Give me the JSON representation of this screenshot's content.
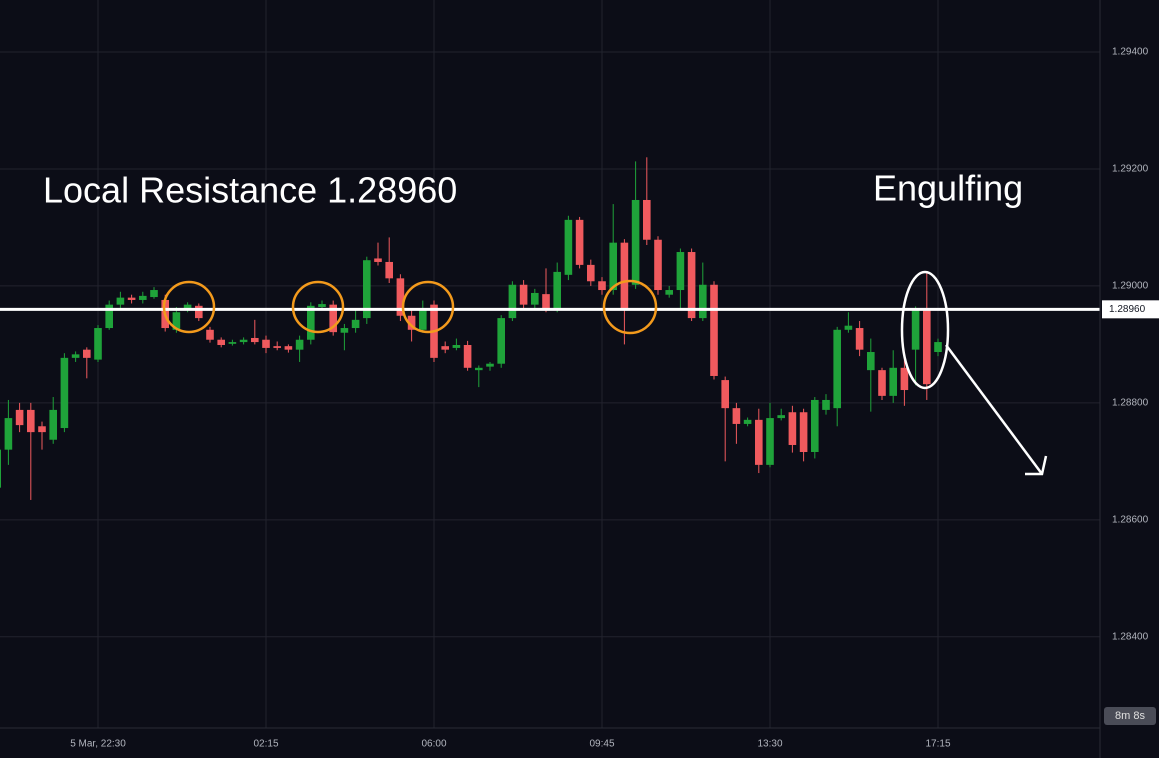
{
  "chart_data": {
    "type": "candlestick",
    "annotations": [
      "Local Resistance 1.28960",
      "Engulfing"
    ],
    "x": [
      "20:15",
      "20:30",
      "20:45",
      "21:00",
      "21:15",
      "21:30",
      "21:45",
      "22:00",
      "22:15",
      "22:30",
      "22:45",
      "23:00",
      "23:15",
      "23:30",
      "23:45",
      "00:00",
      "00:15",
      "00:30",
      "00:45",
      "01:00",
      "01:15",
      "01:30",
      "01:45",
      "02:00",
      "02:15",
      "02:30",
      "02:45",
      "03:00",
      "03:15",
      "03:30",
      "03:45",
      "04:00",
      "04:15",
      "04:30",
      "04:45",
      "05:00",
      "05:15",
      "05:30",
      "05:45",
      "06:00",
      "06:15",
      "06:30",
      "06:45",
      "07:00",
      "07:15",
      "07:30",
      "07:45",
      "08:00",
      "08:15",
      "08:30",
      "08:45",
      "09:00",
      "09:15",
      "09:30",
      "09:45",
      "10:00",
      "10:15",
      "10:30",
      "10:45",
      "11:00",
      "11:15",
      "11:30",
      "11:45",
      "12:00",
      "12:15",
      "12:30",
      "12:45",
      "13:00",
      "13:15",
      "13:30",
      "13:45",
      "14:00",
      "14:15",
      "14:30",
      "14:45",
      "15:00",
      "15:15",
      "15:30",
      "15:45",
      "16:00",
      "16:15",
      "16:30",
      "16:45",
      "17:00",
      "17:15"
    ],
    "open": [
      1.28655,
      1.2872,
      1.28788,
      1.28788,
      1.2876,
      1.28737,
      1.28757,
      1.28877,
      1.28891,
      1.28874,
      1.28928,
      1.28968,
      1.2898,
      1.28976,
      1.28981,
      1.28976,
      1.28925,
      1.28962,
      1.28966,
      1.28925,
      1.28908,
      1.28901,
      1.28904,
      1.28911,
      1.28908,
      1.28897,
      1.28897,
      1.28891,
      1.28908,
      1.28964,
      1.28968,
      1.2892,
      1.28928,
      1.28945,
      1.29047,
      1.29041,
      1.29013,
      1.28949,
      1.28925,
      1.28968,
      1.28897,
      1.28894,
      1.28899,
      1.28856,
      1.28862,
      1.28867,
      1.28945,
      1.29002,
      1.28968,
      1.28986,
      1.28962,
      1.29019,
      1.29113,
      1.29036,
      1.29008,
      1.28993,
      1.29074,
      1.29002,
      1.29147,
      1.29079,
      1.28985,
      1.28993,
      1.29058,
      1.28945,
      1.29002,
      1.28839,
      1.28791,
      1.28764,
      1.28771,
      1.28694,
      1.28774,
      1.28784,
      1.28784,
      1.28716,
      1.28788,
      1.28791,
      1.28925,
      1.28928,
      1.28856,
      1.28856,
      1.28812,
      1.2886,
      1.28891,
      1.28959,
      1.28887
    ],
    "high": [
      1.2873,
      1.28805,
      1.288,
      1.288,
      1.28768,
      1.2881,
      1.28885,
      1.28888,
      1.28895,
      1.28933,
      1.28975,
      1.2899,
      1.28985,
      1.2899,
      1.28998,
      1.28985,
      1.28964,
      1.28972,
      1.2897,
      1.2893,
      1.28912,
      1.28908,
      1.28912,
      1.28942,
      1.28915,
      1.28905,
      1.289,
      1.28915,
      1.28972,
      1.28975,
      1.28975,
      1.28935,
      1.2896,
      1.2905,
      1.29074,
      1.29083,
      1.2902,
      1.2896,
      1.28975,
      1.28975,
      1.28905,
      1.2891,
      1.28906,
      1.28864,
      1.2887,
      1.2895,
      1.29008,
      1.2901,
      1.28995,
      1.2903,
      1.2904,
      1.2912,
      1.29118,
      1.29045,
      1.29015,
      1.2914,
      1.2908,
      1.29213,
      1.2922,
      1.29085,
      1.29,
      1.29064,
      1.29064,
      1.2904,
      1.29008,
      1.28845,
      1.288,
      1.28775,
      1.2879,
      1.288,
      1.2879,
      1.28795,
      1.2879,
      1.2881,
      1.28815,
      1.2893,
      1.28955,
      1.2894,
      1.2891,
      1.2886,
      1.2889,
      1.2888,
      1.28965,
      1.29022,
      1.2891
    ],
    "low": [
      1.2864,
      1.28694,
      1.2875,
      1.28634,
      1.2872,
      1.2873,
      1.2875,
      1.2887,
      1.28842,
      1.2887,
      1.28925,
      1.2896,
      1.2897,
      1.2897,
      1.28978,
      1.28922,
      1.2892,
      1.28955,
      1.2894,
      1.28903,
      1.28895,
      1.28898,
      1.289,
      1.289,
      1.28885,
      1.2889,
      1.28886,
      1.2887,
      1.289,
      1.28958,
      1.28915,
      1.2889,
      1.2892,
      1.28935,
      1.29035,
      1.29005,
      1.2894,
      1.28905,
      1.2892,
      1.2887,
      1.28885,
      1.2889,
      1.28855,
      1.28827,
      1.28855,
      1.2886,
      1.2894,
      1.2896,
      1.28962,
      1.28955,
      1.28955,
      1.2901,
      1.2903,
      1.29,
      1.28985,
      1.28985,
      1.289,
      1.28995,
      1.2907,
      1.28985,
      1.2898,
      1.2896,
      1.2894,
      1.2894,
      1.2884,
      1.287,
      1.2873,
      1.2876,
      1.2868,
      1.2869,
      1.2877,
      1.28715,
      1.287,
      1.28705,
      1.2878,
      1.2876,
      1.2892,
      1.2888,
      1.28785,
      1.28805,
      1.288,
      1.28795,
      1.2883,
      1.28805,
      1.2888
    ],
    "close": [
      1.2872,
      1.28774,
      1.28762,
      1.2875,
      1.2875,
      1.28788,
      1.28877,
      1.28883,
      1.28877,
      1.28928,
      1.28968,
      1.2898,
      1.28976,
      1.28983,
      1.28993,
      1.28928,
      1.28955,
      1.28968,
      1.28945,
      1.28908,
      1.28899,
      1.28904,
      1.28908,
      1.28904,
      1.28894,
      1.28894,
      1.28891,
      1.28908,
      1.28966,
      1.28969,
      1.28921,
      1.28928,
      1.28942,
      1.29044,
      1.29041,
      1.29013,
      1.28949,
      1.28925,
      1.28962,
      1.28877,
      1.28891,
      1.28899,
      1.2886,
      1.2886,
      1.28867,
      1.28945,
      1.29002,
      1.28968,
      1.28988,
      1.28962,
      1.29024,
      1.29113,
      1.29036,
      1.29008,
      1.28993,
      1.29074,
      1.28959,
      1.29147,
      1.29079,
      1.28993,
      1.28993,
      1.29058,
      1.28945,
      1.29002,
      1.28846,
      1.28791,
      1.28764,
      1.28771,
      1.28694,
      1.28774,
      1.28779,
      1.28728,
      1.28716,
      1.28805,
      1.28805,
      1.28925,
      1.28932,
      1.28891,
      1.28887,
      1.28812,
      1.2886,
      1.28822,
      1.28959,
      1.28832,
      1.28904
    ],
    "up_color": "#1fa33a",
    "down_color": "#f05a5e",
    "ylim": [
      1.28244,
      1.29489
    ],
    "yticks": [
      {
        "value": 1.284,
        "label": "1.28400"
      },
      {
        "value": 1.286,
        "label": "1.28600"
      },
      {
        "value": 1.288,
        "label": "1.28800"
      },
      {
        "value": 1.29,
        "label": "1.29000"
      },
      {
        "value": 1.292,
        "label": "1.29200"
      },
      {
        "value": 1.294,
        "label": "1.29400"
      }
    ],
    "xticks": [
      {
        "value": "22:30",
        "label": "5 Mar, 22:30"
      },
      "02:15",
      "06:00",
      "09:45",
      "13:30",
      "17:15"
    ],
    "resistance": {
      "value": 1.2896,
      "label": "1.28960"
    },
    "countdown": "8m 8s",
    "grid": true
  }
}
